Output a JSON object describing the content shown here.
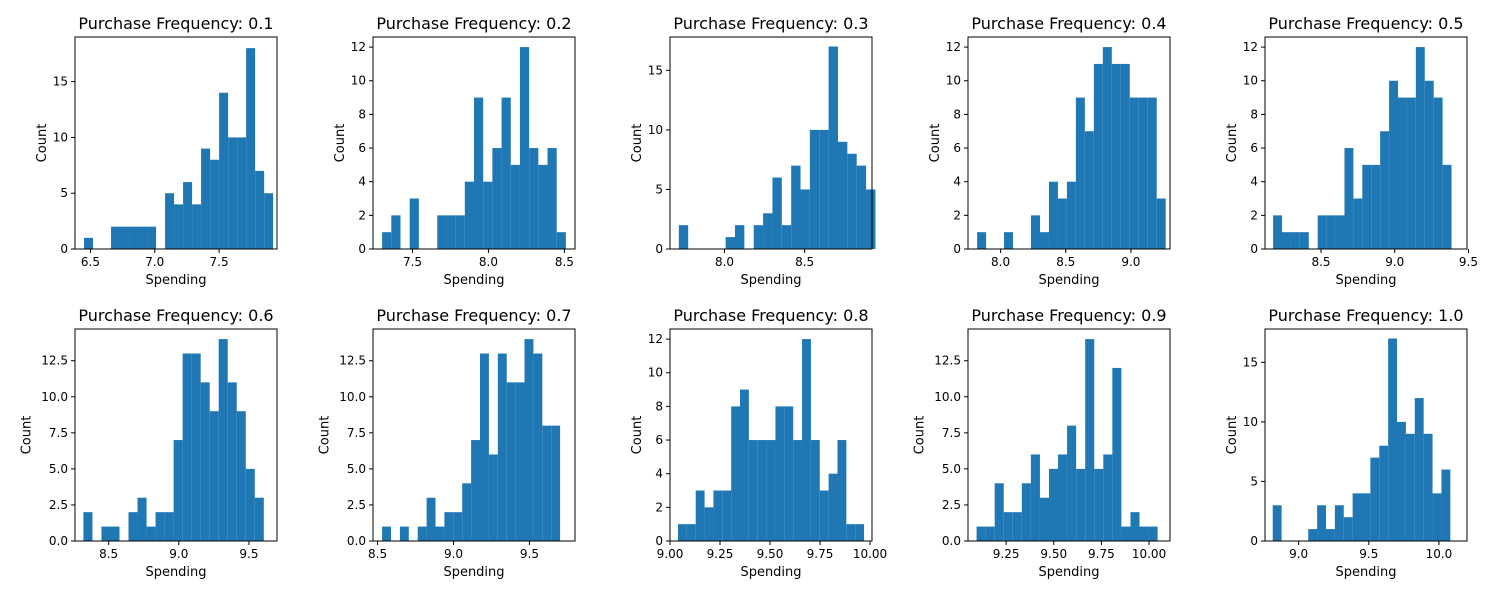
{
  "chart_data": [
    {
      "type": "bar",
      "title": "Purchase Frequency: 0.1",
      "xlabel": "Spending",
      "ylabel": "Count",
      "xlim": [
        6.38,
        7.95
      ],
      "ylim": [
        0,
        19
      ],
      "xticks": [
        {
          "v": 6.5,
          "t": "6.5"
        },
        {
          "v": 7.0,
          "t": "7.0"
        },
        {
          "v": 7.5,
          "t": "7.5"
        }
      ],
      "yticks": [
        {
          "v": 0,
          "t": "0"
        },
        {
          "v": 5,
          "t": "5"
        },
        {
          "v": 10,
          "t": "10"
        },
        {
          "v": 15,
          "t": "15"
        }
      ],
      "bin_start": 6.45,
      "bin_width": 0.07,
      "counts": [
        1,
        0,
        0,
        2,
        2,
        2,
        2,
        2,
        0,
        5,
        4,
        6,
        4,
        9,
        8,
        14,
        10,
        10,
        18,
        7,
        5
      ]
    },
    {
      "type": "bar",
      "title": "Purchase Frequency: 0.2",
      "xlabel": "Spending",
      "ylabel": "Count",
      "xlim": [
        7.24,
        8.57
      ],
      "ylim": [
        0,
        12.6
      ],
      "xticks": [
        {
          "v": 7.5,
          "t": "7.5"
        },
        {
          "v": 8.0,
          "t": "8.0"
        },
        {
          "v": 8.5,
          "t": "8.5"
        }
      ],
      "yticks": [
        {
          "v": 0,
          "t": "0"
        },
        {
          "v": 2,
          "t": "2"
        },
        {
          "v": 4,
          "t": "4"
        },
        {
          "v": 6,
          "t": "6"
        },
        {
          "v": 8,
          "t": "8"
        },
        {
          "v": 10,
          "t": "10"
        },
        {
          "v": 12,
          "t": "12"
        }
      ],
      "bin_start": 7.3,
      "bin_width": 0.0605,
      "counts": [
        1,
        2,
        0,
        3,
        0,
        0,
        2,
        2,
        2,
        4,
        9,
        4,
        6,
        9,
        5,
        12,
        6,
        5,
        6,
        1
      ]
    },
    {
      "type": "bar",
      "title": "Purchase Frequency: 0.3",
      "xlabel": "Spending",
      "ylabel": "Count",
      "xlim": [
        7.66,
        8.92
      ],
      "ylim": [
        0,
        17.8
      ],
      "xticks": [
        {
          "v": 8.0,
          "t": "8.0"
        },
        {
          "v": 8.5,
          "t": "8.5"
        }
      ],
      "yticks": [
        {
          "v": 0,
          "t": "0"
        },
        {
          "v": 5,
          "t": "5"
        },
        {
          "v": 10,
          "t": "10"
        },
        {
          "v": 15,
          "t": "15"
        }
      ],
      "bin_start": 7.715,
      "bin_width": 0.0584,
      "counts": [
        2,
        0,
        0,
        0,
        0,
        1,
        2,
        0,
        2,
        3,
        6,
        2,
        7,
        5,
        10,
        10,
        17,
        9,
        8,
        7,
        5
      ]
    },
    {
      "type": "bar",
      "title": "Purchase Frequency: 0.4",
      "xlabel": "Spending",
      "ylabel": "Count",
      "xlim": [
        7.75,
        9.3
      ],
      "ylim": [
        0,
        12.6
      ],
      "xticks": [
        {
          "v": 8.0,
          "t": "8.0"
        },
        {
          "v": 8.5,
          "t": "8.5"
        },
        {
          "v": 9.0,
          "t": "9.0"
        }
      ],
      "yticks": [
        {
          "v": 0,
          "t": "0"
        },
        {
          "v": 2,
          "t": "2"
        },
        {
          "v": 4,
          "t": "4"
        },
        {
          "v": 6,
          "t": "6"
        },
        {
          "v": 8,
          "t": "8"
        },
        {
          "v": 10,
          "t": "10"
        },
        {
          "v": 12,
          "t": "12"
        }
      ],
      "bin_start": 7.82,
      "bin_width": 0.0689,
      "counts": [
        1,
        0,
        0,
        1,
        0,
        0,
        2,
        1,
        4,
        3,
        4,
        9,
        7,
        11,
        12,
        11,
        11,
        9,
        9,
        9,
        3
      ]
    },
    {
      "type": "bar",
      "title": "Purchase Frequency: 0.5",
      "xlabel": "Spending",
      "ylabel": "Count",
      "xlim": [
        8.12,
        9.49
      ],
      "ylim": [
        0,
        12.6
      ],
      "xticks": [
        {
          "v": 8.5,
          "t": "8.5"
        },
        {
          "v": 9.0,
          "t": "9.0"
        },
        {
          "v": 9.5,
          "t": "9.5"
        }
      ],
      "yticks": [
        {
          "v": 0,
          "t": "0"
        },
        {
          "v": 2,
          "t": "2"
        },
        {
          "v": 4,
          "t": "4"
        },
        {
          "v": 6,
          "t": "6"
        },
        {
          "v": 8,
          "t": "8"
        },
        {
          "v": 10,
          "t": "10"
        },
        {
          "v": 12,
          "t": "12"
        }
      ],
      "bin_start": 8.175,
      "bin_width": 0.0605,
      "counts": [
        2,
        1,
        1,
        1,
        0,
        2,
        2,
        2,
        6,
        3,
        5,
        5,
        7,
        10,
        9,
        9,
        12,
        10,
        9,
        5,
        0
      ]
    },
    {
      "type": "bar",
      "title": "Purchase Frequency: 0.6",
      "xlabel": "Spending",
      "ylabel": "Count",
      "xlim": [
        8.26,
        9.7
      ],
      "ylim": [
        0,
        14.7
      ],
      "xticks": [
        {
          "v": 8.5,
          "t": "8.5"
        },
        {
          "v": 9.0,
          "t": "9.0"
        },
        {
          "v": 9.5,
          "t": "9.5"
        }
      ],
      "yticks": [
        {
          "v": 0,
          "t": "0.0"
        },
        {
          "v": 2.5,
          "t": "2.5"
        },
        {
          "v": 5,
          "t": "5.0"
        },
        {
          "v": 7.5,
          "t": "7.5"
        },
        {
          "v": 10,
          "t": "10.0"
        },
        {
          "v": 12.5,
          "t": "12.5"
        }
      ],
      "bin_start": 8.32,
      "bin_width": 0.0643,
      "counts": [
        2,
        0,
        1,
        1,
        0,
        2,
        3,
        1,
        2,
        2,
        7,
        13,
        13,
        11,
        9,
        14,
        11,
        9,
        5,
        3,
        0
      ]
    },
    {
      "type": "bar",
      "title": "Purchase Frequency: 0.7",
      "xlabel": "Spending",
      "ylabel": "Count",
      "xlim": [
        8.47,
        9.8
      ],
      "ylim": [
        0,
        14.7
      ],
      "xticks": [
        {
          "v": 8.5,
          "t": "8.5"
        },
        {
          "v": 9.0,
          "t": "9.0"
        },
        {
          "v": 9.5,
          "t": "9.5"
        }
      ],
      "yticks": [
        {
          "v": 0,
          "t": "0.0"
        },
        {
          "v": 2.5,
          "t": "2.5"
        },
        {
          "v": 5,
          "t": "5.0"
        },
        {
          "v": 7.5,
          "t": "7.5"
        },
        {
          "v": 10,
          "t": "10.0"
        },
        {
          "v": 12.5,
          "t": "12.5"
        }
      ],
      "bin_start": 8.53,
      "bin_width": 0.0586,
      "counts": [
        1,
        0,
        1,
        0,
        1,
        3,
        1,
        2,
        2,
        4,
        7,
        13,
        6,
        13,
        11,
        11,
        14,
        13,
        8,
        8,
        0
      ]
    },
    {
      "type": "bar",
      "title": "Purchase Frequency: 0.8",
      "xlabel": "Spending",
      "ylabel": "Count",
      "xlim": [
        9.0,
        10.01
      ],
      "ylim": [
        0,
        12.6
      ],
      "xticks": [
        {
          "v": 9.0,
          "t": "9.00"
        },
        {
          "v": 9.25,
          "t": "9.25"
        },
        {
          "v": 9.5,
          "t": "9.50"
        },
        {
          "v": 9.75,
          "t": "9.75"
        },
        {
          "v": 10.0,
          "t": "10.00"
        }
      ],
      "yticks": [
        {
          "v": 0,
          "t": "0"
        },
        {
          "v": 2,
          "t": "2"
        },
        {
          "v": 4,
          "t": "4"
        },
        {
          "v": 6,
          "t": "6"
        },
        {
          "v": 8,
          "t": "8"
        },
        {
          "v": 10,
          "t": "10"
        },
        {
          "v": 12,
          "t": "12"
        }
      ],
      "bin_start": 9.04,
      "bin_width": 0.0443,
      "counts": [
        1,
        1,
        3,
        2,
        3,
        3,
        8,
        9,
        6,
        6,
        6,
        8,
        8,
        6,
        12,
        6,
        3,
        4,
        6,
        1,
        1
      ]
    },
    {
      "type": "bar",
      "title": "Purchase Frequency: 0.9",
      "xlabel": "Spending",
      "ylabel": "Count",
      "xlim": [
        9.05,
        10.11
      ],
      "ylim": [
        0,
        14.7
      ],
      "xticks": [
        {
          "v": 9.25,
          "t": "9.25"
        },
        {
          "v": 9.5,
          "t": "9.50"
        },
        {
          "v": 9.75,
          "t": "9.75"
        },
        {
          "v": 10.0,
          "t": "10.00"
        }
      ],
      "yticks": [
        {
          "v": 0,
          "t": "0.0"
        },
        {
          "v": 2.5,
          "t": "2.5"
        },
        {
          "v": 5,
          "t": "5.0"
        },
        {
          "v": 7.5,
          "t": "7.5"
        },
        {
          "v": 10,
          "t": "10.0"
        },
        {
          "v": 12.5,
          "t": "12.5"
        }
      ],
      "bin_start": 9.095,
      "bin_width": 0.0475,
      "counts": [
        1,
        1,
        4,
        2,
        2,
        4,
        6,
        3,
        5,
        6,
        8,
        5,
        14,
        5,
        6,
        12,
        1,
        2,
        1,
        1,
        0
      ]
    },
    {
      "type": "bar",
      "title": "Purchase Frequency: 1.0",
      "xlabel": "Spending",
      "ylabel": "Count",
      "xlim": [
        8.76,
        10.2
      ],
      "ylim": [
        0,
        17.8
      ],
      "xticks": [
        {
          "v": 9.0,
          "t": "9.0"
        },
        {
          "v": 9.5,
          "t": "9.5"
        },
        {
          "v": 10.0,
          "t": "10.0"
        }
      ],
      "yticks": [
        {
          "v": 0,
          "t": "0"
        },
        {
          "v": 5,
          "t": "5"
        },
        {
          "v": 10,
          "t": "10"
        },
        {
          "v": 15,
          "t": "15"
        }
      ],
      "bin_start": 8.815,
      "bin_width": 0.0633,
      "counts": [
        3,
        0,
        0,
        0,
        1,
        3,
        1,
        3,
        2,
        4,
        4,
        7,
        8,
        17,
        10,
        9,
        12,
        9,
        4,
        6,
        0
      ]
    }
  ],
  "colors": {
    "bar": "#1f77b4",
    "axis": "#000000",
    "background": "#ffffff"
  }
}
